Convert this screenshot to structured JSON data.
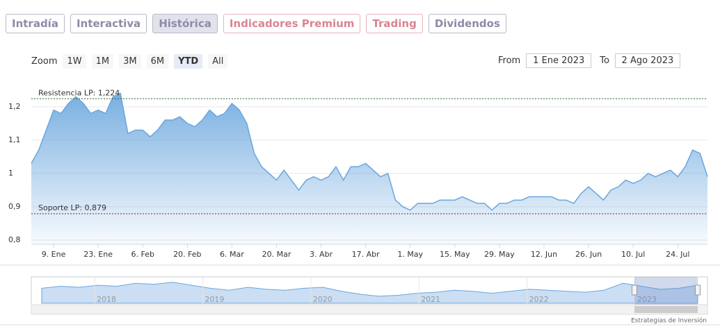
{
  "tabs": [
    "Intradía",
    "Interactiva",
    "Histórica",
    "Indicadores Premium",
    "Trading",
    "Dividendos"
  ],
  "zoom": {
    "label": "Zoom",
    "buttons": [
      "1W",
      "1M",
      "3M",
      "6M",
      "YTD",
      "All"
    ]
  },
  "range": {
    "from_label": "From",
    "from": "1 Ene 2023",
    "to_label": "To",
    "to": "2 Ago 2023"
  },
  "chart_data": {
    "type": "area",
    "color": "#6aa6de",
    "x": [
      "2. Ene",
      "4. Ene",
      "6. Ene",
      "9. Ene",
      "11. Ene",
      "13. Ene",
      "16. Ene",
      "18. Ene",
      "20. Ene",
      "23. Ene",
      "25. Ene",
      "27. Ene",
      "30. Ene",
      "1. Feb",
      "3. Feb",
      "6. Feb",
      "8. Feb",
      "10. Feb",
      "13. Feb",
      "15. Feb",
      "17. Feb",
      "20. Feb",
      "22. Feb",
      "24. Feb",
      "27. Feb",
      "1. Mar",
      "3. Mar",
      "6. Mar",
      "8. Mar",
      "10. Mar",
      "13. Mar",
      "15. Mar",
      "17. Mar",
      "20. Mar",
      "22. Mar",
      "24. Mar",
      "27. Mar",
      "29. Mar",
      "31. Mar",
      "3. Abr",
      "5. Abr",
      "7. Abr",
      "10. Abr",
      "12. Abr",
      "14. Abr",
      "17. Abr",
      "19. Abr",
      "21. Abr",
      "24. Abr",
      "26. Abr",
      "28. Abr",
      "1. May",
      "3. May",
      "5. May",
      "8. May",
      "10. May",
      "12. May",
      "15. May",
      "17. May",
      "19. May",
      "22. May",
      "24. May",
      "26. May",
      "29. May",
      "31. May",
      "2. Jun",
      "5. Jun",
      "7. Jun",
      "9. Jun",
      "12. Jun",
      "14. Jun",
      "16. Jun",
      "19. Jun",
      "21. Jun",
      "23. Jun",
      "26. Jun",
      "28. Jun",
      "30. Jun",
      "3. Jul",
      "5. Jul",
      "7. Jul",
      "10. Jul",
      "12. Jul",
      "14. Jul",
      "17. Jul",
      "19. Jul",
      "21. Jul",
      "24. Jul",
      "26. Jul",
      "28. Jul",
      "31. Jul",
      "2. Ago"
    ],
    "values": [
      1.03,
      1.07,
      1.13,
      1.19,
      1.18,
      1.21,
      1.23,
      1.21,
      1.18,
      1.19,
      1.18,
      1.23,
      1.24,
      1.12,
      1.13,
      1.13,
      1.11,
      1.13,
      1.16,
      1.16,
      1.17,
      1.15,
      1.14,
      1.16,
      1.19,
      1.17,
      1.18,
      1.21,
      1.19,
      1.15,
      1.06,
      1.02,
      1.0,
      0.98,
      1.01,
      0.98,
      0.95,
      0.98,
      0.99,
      0.98,
      0.99,
      1.02,
      0.98,
      1.02,
      1.02,
      1.03,
      1.01,
      0.99,
      1.0,
      0.92,
      0.9,
      0.89,
      0.91,
      0.91,
      0.91,
      0.92,
      0.92,
      0.92,
      0.93,
      0.92,
      0.91,
      0.91,
      0.89,
      0.91,
      0.91,
      0.92,
      0.92,
      0.93,
      0.93,
      0.93,
      0.93,
      0.92,
      0.92,
      0.91,
      0.94,
      0.96,
      0.94,
      0.92,
      0.95,
      0.96,
      0.98,
      0.97,
      0.98,
      1.0,
      0.99,
      1.0,
      1.01,
      0.99,
      1.02,
      1.07,
      1.06,
      0.99
    ],
    "xticks": [
      "9. Ene",
      "23. Ene",
      "6. Feb",
      "20. Feb",
      "6. Mar",
      "20. Mar",
      "3. Abr",
      "17. Abr",
      "1. May",
      "15. May",
      "29. May",
      "12. Jun",
      "26. Jun",
      "10. Jul",
      "24. Jul"
    ],
    "ylim": [
      0.8,
      1.26
    ],
    "yticks": [
      {
        "value": 0.8,
        "label": "0,8"
      },
      {
        "value": 0.9,
        "label": "0,9"
      },
      1,
      {
        "value": 1.1,
        "label": "1,1"
      },
      {
        "value": 1.2,
        "label": "1,2"
      }
    ],
    "grid": true,
    "plot_lines": [
      {
        "label": "Resistencia LP: 1,224",
        "value": 1.224,
        "color": "#2f5a2f"
      },
      {
        "label": "Soporte LP: 0,879",
        "value": 0.879,
        "color": "#7a1f1f"
      }
    ]
  },
  "navigator": {
    "values": [
      1.0,
      1.02,
      1.01,
      1.03,
      1.02,
      1.05,
      1.04,
      1.06,
      1.03,
      1.0,
      0.98,
      1.01,
      0.99,
      0.98,
      1.0,
      1.01,
      0.97,
      0.94,
      0.92,
      0.93,
      0.95,
      0.96,
      0.98,
      0.97,
      0.95,
      0.97,
      0.99,
      0.98,
      0.97,
      0.96,
      0.98,
      1.05,
      1.02,
      0.99,
      1.0,
      1.03
    ],
    "ylim": [
      0.85,
      1.1
    ],
    "years": [
      "2018",
      "2019",
      "2020",
      "2021",
      "2022",
      "2023"
    ]
  },
  "credit": "Estrategias de Inversión"
}
